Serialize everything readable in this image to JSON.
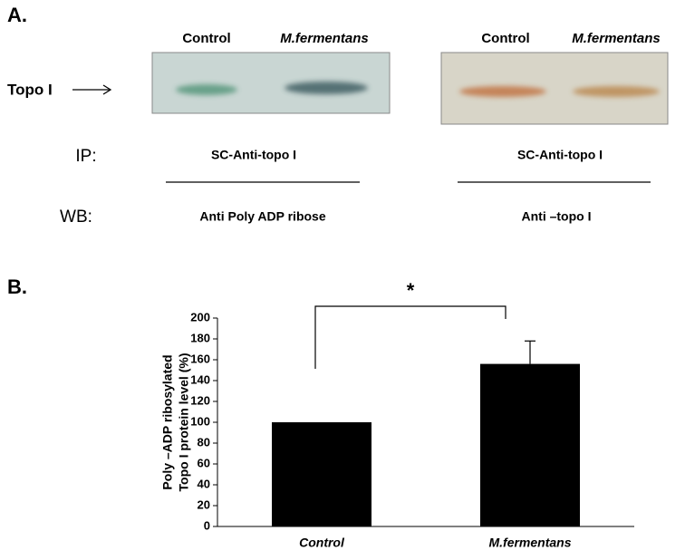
{
  "panel_a": {
    "label": "A.",
    "blots": [
      {
        "lanes": [
          "Control",
          "M.fermentans"
        ],
        "ip": "SC-Anti-topo I",
        "wb": "Anti Poly ADP ribose"
      },
      {
        "lanes": [
          "Control",
          "M.fermentans"
        ],
        "ip": "SC-Anti-topo I",
        "wb": "Anti –topo I"
      }
    ],
    "band_label": "Topo I",
    "ip_label": "IP:",
    "wb_label": "WB:"
  },
  "chart_data": {
    "type": "bar",
    "panel_label": "B.",
    "ylabel": [
      "Poly –ADP ribosylated",
      "Topo I protein level (%)"
    ],
    "categories": [
      "Control",
      "M.fermentans"
    ],
    "series": [
      {
        "color": "#000000",
        "values": [
          100,
          156
        ],
        "errors": [
          null,
          22
        ]
      }
    ],
    "ylim": [
      0,
      200
    ],
    "yticks": [
      0,
      20,
      40,
      60,
      80,
      100,
      120,
      140,
      160,
      180,
      200
    ],
    "significance": "*"
  }
}
